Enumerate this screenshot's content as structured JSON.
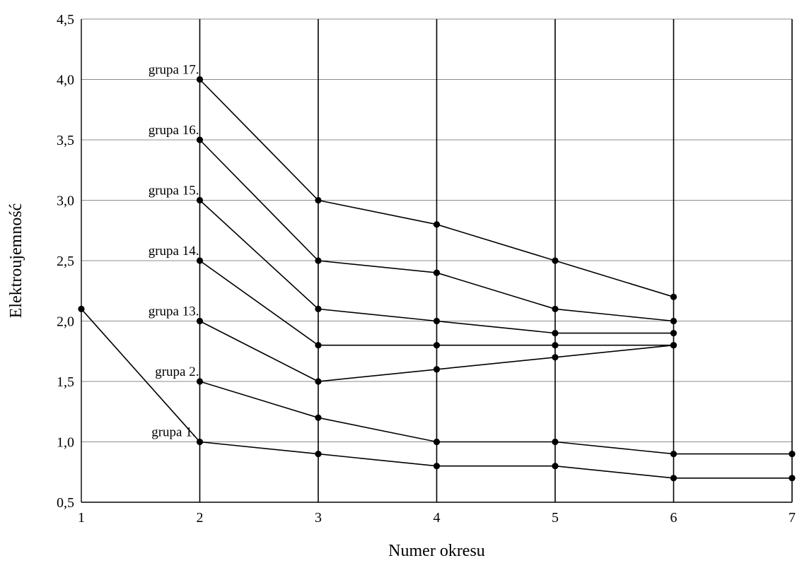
{
  "chart_data": {
    "type": "line",
    "xlabel": "Numer okresu",
    "ylabel": "Elektroujemność",
    "xlim": [
      1,
      7
    ],
    "ylim": [
      0.5,
      4.5
    ],
    "x_ticks": [
      "1",
      "2",
      "3",
      "4",
      "5",
      "6",
      "7"
    ],
    "y_ticks": [
      "0,5",
      "1,0",
      "1,5",
      "2,0",
      "2,5",
      "3,0",
      "3,5",
      "4,0",
      "4,5"
    ],
    "grid": {
      "horizontal": true,
      "vertical": true
    },
    "series": [
      {
        "name": "grupa 1.",
        "x": [
          1,
          2,
          3,
          4,
          5,
          6,
          7
        ],
        "values": [
          2.1,
          1.0,
          0.9,
          0.8,
          0.8,
          0.7,
          0.7
        ]
      },
      {
        "name": "grupa 2.",
        "x": [
          2,
          3,
          4,
          5,
          6,
          7
        ],
        "values": [
          1.5,
          1.2,
          1.0,
          1.0,
          0.9,
          0.9
        ]
      },
      {
        "name": "grupa 13.",
        "x": [
          2,
          3,
          4,
          5,
          6
        ],
        "values": [
          2.0,
          1.5,
          1.6,
          1.7,
          1.8
        ]
      },
      {
        "name": "grupa 14.",
        "x": [
          2,
          3,
          4,
          5,
          6
        ],
        "values": [
          2.5,
          1.8,
          1.8,
          1.8,
          1.8
        ]
      },
      {
        "name": "grupa 15.",
        "x": [
          2,
          3,
          4,
          5,
          6
        ],
        "values": [
          3.0,
          2.1,
          2.0,
          1.9,
          1.9
        ]
      },
      {
        "name": "grupa 16.",
        "x": [
          2,
          3,
          4,
          5,
          6
        ],
        "values": [
          3.5,
          2.5,
          2.4,
          2.1,
          2.0
        ]
      },
      {
        "name": "grupa 17.",
        "x": [
          2,
          3,
          4,
          5,
          6
        ],
        "values": [
          4.0,
          3.0,
          2.8,
          2.5,
          2.2
        ]
      }
    ]
  }
}
